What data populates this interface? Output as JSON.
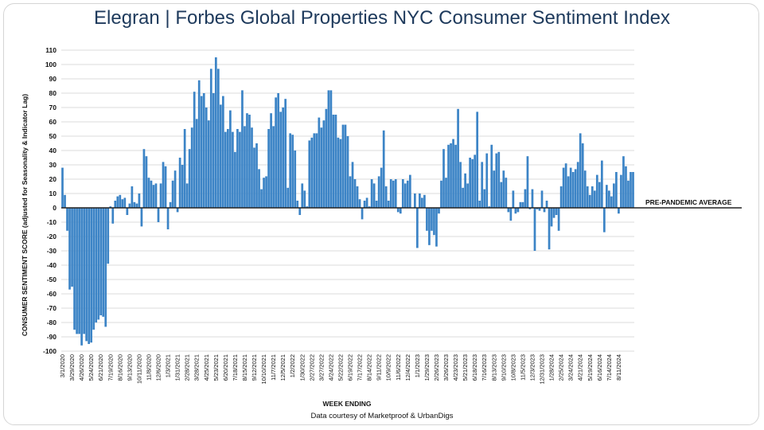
{
  "title_part1": "Elegran | Forbes Global Properties",
  "title_part2": " NYC Consumer Sentiment Index",
  "credit": "Data courtesy of Marketproof & UrbanDigs",
  "colors": {
    "bar": "#3c84c6",
    "title": "#1e3a5c",
    "grid": "#cfcfcf"
  },
  "chart_data": {
    "type": "bar",
    "ylabel": "CONSUMER SENTIMENT SCORE (adjusted for Seasonality & Indicator Lag)",
    "xlabel": "WEEK ENDING",
    "ylim": [
      -100,
      110
    ],
    "yticks": [
      110,
      100,
      90,
      80,
      70,
      60,
      50,
      40,
      30,
      20,
      10,
      0,
      -10,
      -20,
      -30,
      -40,
      -50,
      -60,
      -70,
      -80,
      -90,
      -100
    ],
    "grid": true,
    "reference_line": {
      "label": "PRE-PANDEMIC AVERAGE",
      "value": 0
    },
    "x_tick_labels": [
      "3/1/2020",
      "3/29/2020",
      "4/26/2020",
      "5/24/2020",
      "6/21/2020",
      "7/19/2020",
      "8/16/2020",
      "9/13/2020",
      "10/11/2020",
      "11/8/2020",
      "12/6/2020",
      "1/3/2021",
      "1/31/2021",
      "2/28/2021",
      "3/28/2021",
      "4/25/2021",
      "5/23/2021",
      "6/20/2021",
      "7/18/2021",
      "8/15/2021",
      "9/12/2021",
      "10/10/2021",
      "11/7/2021",
      "12/5/2021",
      "1/2/2022",
      "1/30/2022",
      "2/27/2022",
      "3/27/2022",
      "4/24/2022",
      "5/22/2022",
      "6/19/2022",
      "7/17/2022",
      "8/14/2022",
      "9/11/2022",
      "10/9/2022",
      "11/6/2022",
      "12/4/2022",
      "1/1/2023",
      "1/29/2023",
      "2/26/2023",
      "3/26/2023",
      "4/23/2023",
      "5/21/2023",
      "6/18/2023",
      "7/16/2023",
      "8/13/2023",
      "9/10/2023",
      "10/8/2023",
      "11/5/2023",
      "12/3/2023",
      "12/31/2023",
      "1/28/2024",
      "2/25/2024",
      "3/24/2024",
      "4/21/2024",
      "5/19/2024",
      "6/16/2024",
      "7/14/2024",
      "8/11/2024"
    ],
    "values": [
      28,
      9,
      -16,
      -57,
      -55,
      -85,
      -88,
      -88,
      -96,
      -88,
      -93,
      -95,
      -94,
      -85,
      -80,
      -78,
      -75,
      -76,
      -83,
      -39,
      1,
      -11,
      5,
      8,
      9,
      6,
      7,
      -5,
      3,
      15,
      4,
      3,
      10,
      -13,
      41,
      36,
      21,
      19,
      16,
      17,
      -10,
      17,
      32,
      29,
      -15,
      4,
      19,
      26,
      -3,
      35,
      30,
      55,
      17,
      41,
      56,
      81,
      62,
      89,
      78,
      80,
      70,
      61,
      97,
      80,
      105,
      97,
      72,
      78,
      53,
      55,
      68,
      53,
      39,
      55,
      53,
      82,
      57,
      66,
      65,
      56,
      42,
      45,
      27,
      13,
      21,
      22,
      55,
      66,
      57,
      77,
      80,
      67,
      70,
      76,
      14,
      52,
      51,
      40,
      5,
      -5,
      17,
      12,
      1,
      47,
      49,
      52,
      52,
      63,
      56,
      61,
      69,
      82,
      82,
      65,
      65,
      49,
      48,
      58,
      58,
      50,
      22,
      32,
      20,
      15,
      6,
      -8,
      5,
      7,
      1,
      20,
      17,
      5,
      22,
      28,
      54,
      15,
      5,
      20,
      19,
      20,
      -3,
      -4,
      20,
      17,
      19,
      23,
      0,
      10,
      -28,
      10,
      7,
      9,
      -16,
      -26,
      -16,
      -19,
      -27,
      -4,
      19,
      41,
      21,
      44,
      45,
      48,
      44,
      69,
      32,
      14,
      24,
      17,
      35,
      34,
      37,
      67,
      5,
      32,
      13,
      38,
      1,
      44,
      26,
      38,
      39,
      18,
      26,
      21,
      -3,
      -9,
      12,
      -4,
      -3,
      4,
      4,
      13,
      36,
      -1,
      13,
      -30,
      -1,
      -2,
      12,
      -3,
      5,
      -29,
      -13,
      -7,
      -5,
      -16,
      15,
      28,
      31,
      22,
      28,
      25,
      27,
      32,
      52,
      45,
      26,
      15,
      9,
      15,
      12,
      23,
      18,
      33,
      -17,
      16,
      12,
      8,
      17,
      25,
      -4,
      23,
      36,
      29,
      19,
      25,
      25
    ]
  }
}
